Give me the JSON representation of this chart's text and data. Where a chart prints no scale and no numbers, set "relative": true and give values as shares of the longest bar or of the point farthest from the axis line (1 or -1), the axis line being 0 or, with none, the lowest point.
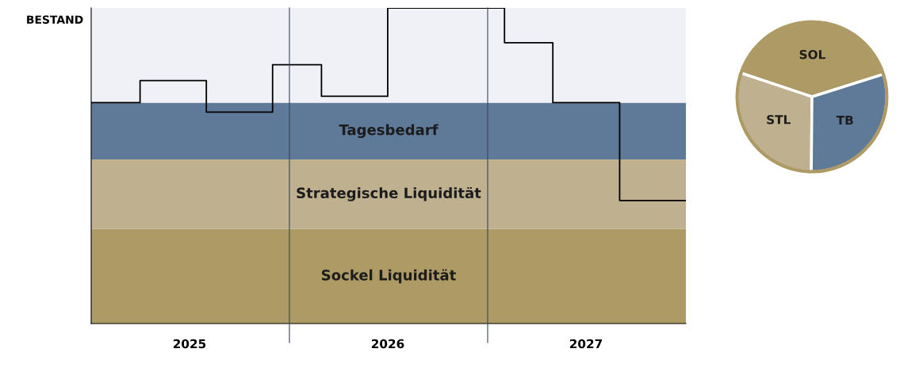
{
  "chart_data": [
    {
      "type": "step",
      "relative": true,
      "ylabel": "BESTAND",
      "xlim": [
        "2025",
        "2028"
      ],
      "xticks": [
        {
          "value": "2025-07",
          "label": "2025"
        },
        {
          "value": "2026-07",
          "label": "2026"
        },
        {
          "value": "2027-07",
          "label": "2027"
        }
      ],
      "ref_lines": [
        {
          "axis": "x",
          "value": "2026",
          "color": "#3a4656"
        },
        {
          "axis": "x",
          "value": "2027",
          "color": "#3a4656"
        }
      ],
      "bands": [
        {
          "axis": "y",
          "from": 0,
          "to": 0.3,
          "label": "Sockel Liquidität",
          "color": "#ad9a64"
        },
        {
          "axis": "y",
          "from": 0.3,
          "to": 0.52,
          "label": "Strategische Liquidität",
          "color": "#bfb18f"
        },
        {
          "axis": "y",
          "from": 0.52,
          "to": 0.7,
          "label": "Tagesbedarf",
          "color": "#5f7a99"
        },
        {
          "axis": "y",
          "from": 0.7,
          "to": 1.0,
          "color": "#f0f1f6"
        }
      ],
      "series": [
        {
          "color": "#000000",
          "x": [
            "2025",
            "2025-04",
            "2025-08",
            "2025-12",
            "2026-03",
            "2026-07",
            "2027-02",
            "2027-05",
            "2027-09",
            "2028"
          ],
          "values": [
            0.7,
            0.77,
            0.67,
            0.82,
            0.72,
            1.0,
            0.89,
            0.7,
            0.39,
            0.39
          ]
        }
      ],
      "legend": false,
      "grid": false
    },
    {
      "type": "pie",
      "categories": [
        "SOL",
        "STL",
        "TB"
      ],
      "values": [
        40,
        30,
        30
      ],
      "colors": [
        "#ad9a64",
        "#bfb18f",
        "#5f7a99"
      ],
      "legend": false
    }
  ]
}
